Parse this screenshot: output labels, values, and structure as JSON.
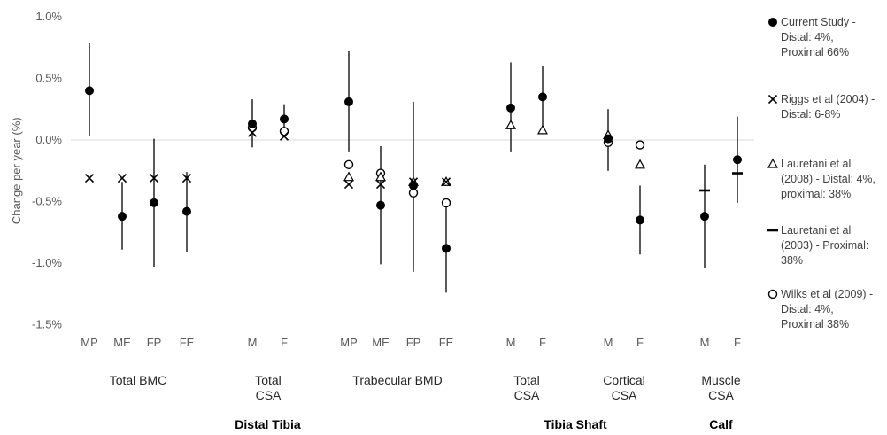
{
  "chart_data": {
    "type": "scatter",
    "ylabel": "Change per year (%)",
    "ylim": [
      -1.5,
      1.0
    ],
    "yticks": [
      "-1.5%",
      "-1.0%",
      "-0.5%",
      "0.0%",
      "0.5%",
      "1.0%"
    ],
    "ytick_values": [
      -1.5,
      -1.0,
      -0.5,
      0.0,
      0.5,
      1.0
    ],
    "categories": [
      "MP",
      "ME",
      "FP",
      "FE",
      "M",
      "F",
      "MP",
      "ME",
      "FP",
      "FE",
      "M",
      "F",
      "M",
      "F",
      "M",
      "F"
    ],
    "groups": [
      {
        "label": [
          "Total BMC"
        ],
        "span": [
          0,
          3
        ]
      },
      {
        "label": [
          "Total",
          "CSA"
        ],
        "span": [
          4,
          5
        ]
      },
      {
        "label": [
          "Trabecular BMD"
        ],
        "span": [
          6,
          9
        ]
      },
      {
        "label": [
          "Total",
          "CSA"
        ],
        "span": [
          10,
          11
        ]
      },
      {
        "label": [
          "Cortical",
          "CSA"
        ],
        "span": [
          12,
          13
        ]
      },
      {
        "label": [
          "Muscle",
          "CSA"
        ],
        "span": [
          14,
          15
        ]
      }
    ],
    "supergroups": [
      {
        "label": "Distal Tibia",
        "span": [
          0,
          9
        ]
      },
      {
        "label": "Tibia Shaft",
        "span": [
          10,
          13
        ]
      },
      {
        "label": "Calf",
        "span": [
          14,
          15
        ]
      }
    ],
    "series": [
      {
        "name": "Current Study - Distal: 4%, Proximal 66%",
        "marker": "filled-circle",
        "values": [
          0.4,
          -0.62,
          -0.51,
          -0.58,
          0.13,
          0.17,
          0.31,
          -0.53,
          -0.37,
          -0.88,
          0.26,
          0.35,
          0.01,
          -0.65,
          -0.62,
          -0.16
        ],
        "error_low": [
          0.03,
          -0.89,
          -1.03,
          -0.91,
          -0.06,
          0.03,
          -0.1,
          -1.01,
          -1.07,
          -1.24,
          -0.1,
          0.08,
          -0.25,
          -0.93,
          -1.04,
          -0.51
        ],
        "error_high": [
          0.79,
          -0.34,
          0.01,
          -0.26,
          0.33,
          0.29,
          0.72,
          -0.05,
          0.31,
          -0.53,
          0.63,
          0.6,
          0.25,
          -0.37,
          -0.2,
          0.19
        ]
      },
      {
        "name": "Riggs et al (2004) - Distal: 6-8%",
        "marker": "x",
        "values": [
          -0.31,
          -0.31,
          -0.31,
          -0.31,
          0.06,
          0.03,
          -0.36,
          -0.36,
          -0.34,
          -0.34,
          null,
          null,
          null,
          null,
          null,
          null
        ]
      },
      {
        "name": "Lauretani et al (2008) - Distal: 4%, proximal: 38%",
        "marker": "open-triangle",
        "values": [
          null,
          null,
          null,
          null,
          null,
          null,
          -0.3,
          -0.3,
          -0.34,
          -0.34,
          0.12,
          0.08,
          0.04,
          -0.2,
          null,
          null
        ]
      },
      {
        "name": "Lauretani et al (2003) - Proximal: 38%",
        "marker": "dash",
        "values": [
          null,
          null,
          null,
          null,
          null,
          null,
          null,
          null,
          null,
          null,
          null,
          null,
          null,
          null,
          -0.41,
          -0.27
        ]
      },
      {
        "name": "Wilks et al (2009) - Distal: 4%, Proximal 38%",
        "marker": "open-circle",
        "values": [
          null,
          null,
          null,
          null,
          0.1,
          0.07,
          -0.2,
          -0.27,
          -0.43,
          -0.51,
          null,
          null,
          -0.02,
          -0.04,
          null,
          null
        ]
      }
    ],
    "legend_lines": [
      [
        "Current Study -",
        "Distal: 4%,",
        "Proximal 66%"
      ],
      [
        "Riggs et al (2004) -",
        "Distal: 6-8%"
      ],
      [
        "Lauretani et al",
        "(2008) - Distal: 4%,",
        "proximal: 38%"
      ],
      [
        "Lauretani et al",
        "(2003) - Proximal:",
        "38%"
      ],
      [
        "Wilks et al (2009) -",
        "Distal: 4%,",
        "Proximal 38%"
      ]
    ],
    "zero_line": true,
    "grid": false,
    "legend_position": "right",
    "colors": {
      "marker": "#000000",
      "error_bar": "#000000",
      "zero_line": "#d9d9d9",
      "text": "#595959"
    }
  }
}
